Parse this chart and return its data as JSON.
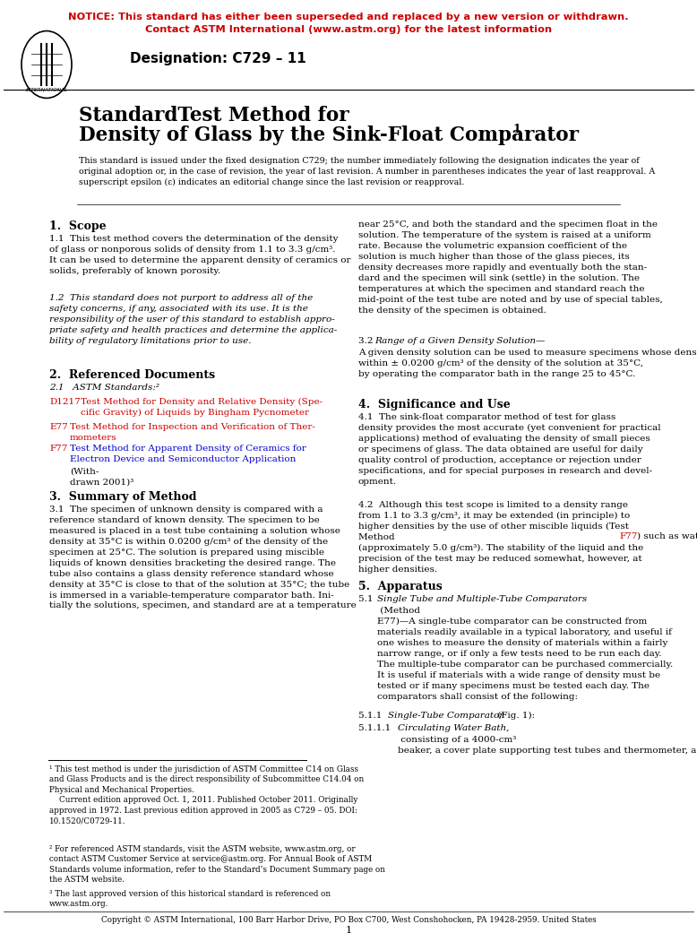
{
  "notice_line1": "NOTICE: This standard has either been superseded and replaced by a new version or withdrawn.",
  "notice_line2": "Contact ASTM International (www.astm.org) for the latest information",
  "notice_color": "#CC0000",
  "designation": "Designation: C729 – 11",
  "title_line1": "StandardTest Method for",
  "title_line2": "Density of Glass by the Sink-Float Comparator",
  "title_superscript": "1",
  "bg_color": "#ffffff",
  "text_color": "#000000",
  "link_color": "#CC0000",
  "blue_link_color": "#0000CC",
  "copyright": "Copyright © ASTM International, 100 Barr Harbor Drive, PO Box C700, West Conshohocken, PA 19428-2959. United States",
  "page_num": "1"
}
